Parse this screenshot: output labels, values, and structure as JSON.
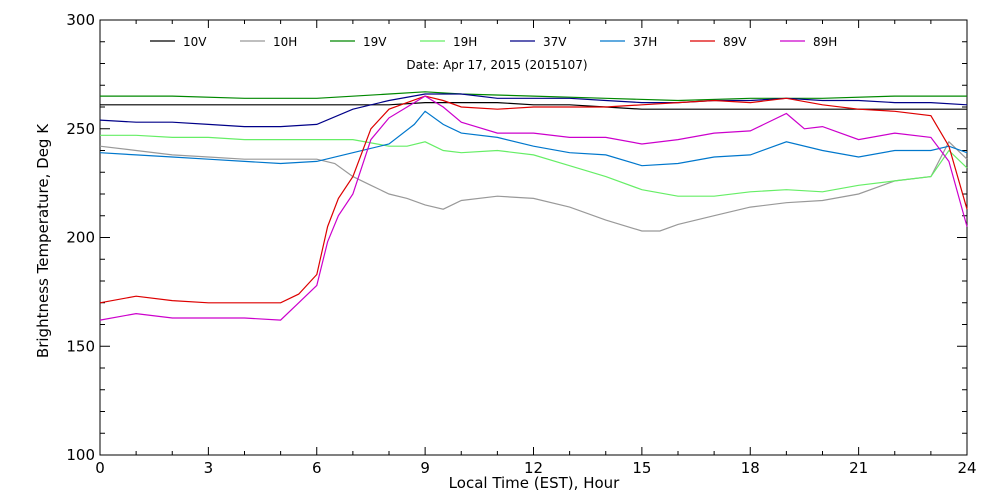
{
  "chart_data": {
    "type": "line",
    "title": "",
    "subtitle": "Date: Apr 17, 2015 (2015107)",
    "xlabel": "Local Time (EST), Hour",
    "ylabel": "Brightness Temperature, Deg K",
    "xlim": [
      0,
      24
    ],
    "ylim": [
      100,
      300
    ],
    "xticks": [
      0,
      3,
      6,
      9,
      12,
      15,
      18,
      21,
      24
    ],
    "xtick_labels": [
      "0",
      "3",
      "6",
      "9",
      "12",
      "15",
      "18",
      "21",
      "24"
    ],
    "yticks": [
      100,
      150,
      200,
      250,
      300
    ],
    "ytick_labels": [
      "100",
      "150",
      "200",
      "250",
      "300"
    ],
    "grid": false,
    "legend_position": "top",
    "series": [
      {
        "name": "10V",
        "color": "#000000",
        "x": [
          0,
          1,
          2,
          3,
          4,
          5,
          6,
          7,
          8,
          9,
          10,
          11,
          12,
          13,
          14,
          15,
          16,
          17,
          18,
          19,
          20,
          21,
          22,
          23,
          24
        ],
        "y": [
          261,
          261,
          261,
          261,
          261,
          261,
          261,
          261,
          261,
          262,
          262,
          262,
          261,
          261,
          260,
          259,
          259,
          259,
          259,
          259,
          259,
          259,
          259,
          259,
          259
        ]
      },
      {
        "name": "10H",
        "color": "#999999",
        "x": [
          0,
          1,
          2,
          3,
          4,
          5,
          6,
          6.5,
          7,
          7.5,
          8,
          8.5,
          9,
          9.5,
          10,
          11,
          12,
          13,
          14,
          15,
          15.5,
          16,
          17,
          18,
          19,
          20,
          21,
          22,
          23,
          23.5,
          24
        ],
        "y": [
          242,
          240,
          238,
          237,
          236,
          236,
          236,
          234,
          228,
          224,
          220,
          218,
          215,
          213,
          217,
          219,
          218,
          214,
          208,
          203,
          203,
          206,
          210,
          214,
          216,
          217,
          220,
          226,
          228,
          244,
          236
        ]
      },
      {
        "name": "19V",
        "color": "#008800",
        "x": [
          0,
          2,
          4,
          6,
          8,
          9,
          10,
          12,
          14,
          16,
          18,
          20,
          22,
          24
        ],
        "y": [
          265,
          265,
          264,
          264,
          266,
          267,
          266,
          265,
          264,
          263,
          264,
          264,
          265,
          265
        ]
      },
      {
        "name": "19H",
        "color": "#66ee66",
        "x": [
          0,
          1,
          2,
          3,
          4,
          5,
          6,
          7,
          8,
          8.5,
          9,
          9.5,
          10,
          11,
          12,
          13,
          14,
          15,
          16,
          17,
          18,
          19,
          20,
          21,
          22,
          23,
          23.5,
          24
        ],
        "y": [
          247,
          247,
          246,
          246,
          245,
          245,
          245,
          245,
          242,
          242,
          244,
          240,
          239,
          240,
          238,
          233,
          228,
          222,
          219,
          219,
          221,
          222,
          221,
          224,
          226,
          228,
          240,
          232
        ]
      },
      {
        "name": "37V",
        "color": "#000088",
        "x": [
          0,
          1,
          2,
          3,
          4,
          5,
          6,
          7,
          8,
          9,
          10,
          11,
          12,
          13,
          14,
          15,
          16,
          17,
          18,
          19,
          20,
          21,
          22,
          23,
          24
        ],
        "y": [
          254,
          253,
          253,
          252,
          251,
          251,
          252,
          259,
          263,
          266,
          266,
          264,
          264,
          264,
          263,
          262,
          262,
          263,
          263,
          264,
          263,
          263,
          262,
          262,
          261
        ]
      },
      {
        "name": "37H",
        "color": "#0077cc",
        "x": [
          0,
          1,
          2,
          3,
          4,
          5,
          6,
          7,
          8,
          8.7,
          9,
          9.5,
          10,
          11,
          12,
          13,
          14,
          15,
          16,
          17,
          18,
          19,
          20,
          21,
          22,
          23,
          23.5,
          24
        ],
        "y": [
          239,
          238,
          237,
          236,
          235,
          234,
          235,
          239,
          243,
          252,
          258,
          252,
          248,
          246,
          242,
          239,
          238,
          233,
          234,
          237,
          238,
          244,
          240,
          237,
          240,
          240,
          242,
          239
        ]
      },
      {
        "name": "89V",
        "color": "#dd0000",
        "x": [
          0,
          1,
          2,
          3,
          4,
          5,
          5.5,
          6,
          6.3,
          6.6,
          7,
          7.5,
          8,
          8.5,
          9,
          9.5,
          10,
          11,
          12,
          13,
          14,
          15,
          16,
          17,
          18,
          19,
          20,
          21,
          22,
          23,
          23.5,
          24
        ],
        "y": [
          170,
          173,
          171,
          170,
          170,
          170,
          174,
          183,
          205,
          218,
          228,
          250,
          259,
          262,
          265,
          263,
          260,
          259,
          260,
          260,
          260,
          261,
          262,
          263,
          262,
          264,
          261,
          259,
          258,
          256,
          242,
          213
        ]
      },
      {
        "name": "89H",
        "color": "#cc00cc",
        "x": [
          0,
          1,
          2,
          3,
          4,
          5,
          5.5,
          6,
          6.3,
          6.6,
          7,
          7.5,
          8,
          8.5,
          9,
          9.5,
          10,
          11,
          12,
          13,
          14,
          15,
          16,
          17,
          18,
          19,
          19.5,
          20,
          21,
          22,
          23,
          23.5,
          24
        ],
        "y": [
          162,
          165,
          163,
          163,
          163,
          162,
          170,
          178,
          198,
          210,
          220,
          245,
          255,
          260,
          265,
          260,
          253,
          248,
          248,
          246,
          246,
          243,
          245,
          248,
          249,
          257,
          250,
          251,
          245,
          248,
          246,
          235,
          205
        ]
      }
    ]
  }
}
